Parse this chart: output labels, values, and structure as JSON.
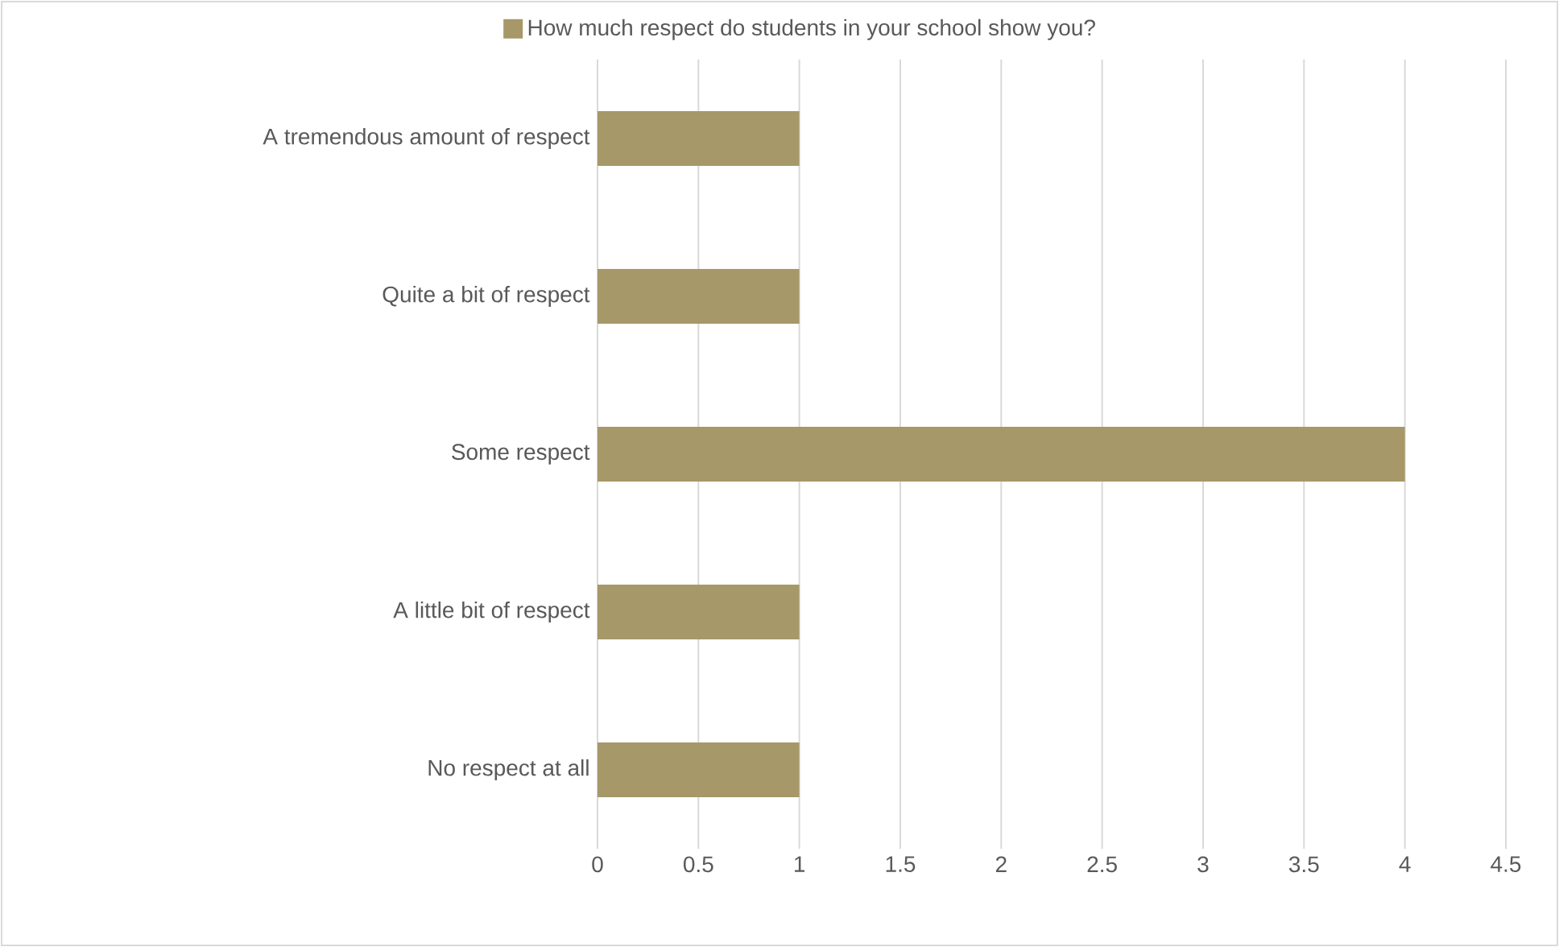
{
  "chart_data": {
    "type": "bar",
    "orientation": "horizontal",
    "legend": "top",
    "grid": "x",
    "categories": [
      "A tremendous amount of respect",
      "Quite a bit of respect",
      "Some respect",
      "A little bit of respect",
      "No respect at all"
    ],
    "series": [
      {
        "name": "How much respect do students in your school show you?",
        "color": "#a69868",
        "values": [
          1,
          1,
          4,
          1,
          1
        ]
      }
    ],
    "xlim": [
      0,
      4.5
    ],
    "xticks": [
      0,
      0.5,
      1,
      1.5,
      2,
      2.5,
      3,
      3.5,
      4,
      4.5
    ]
  }
}
